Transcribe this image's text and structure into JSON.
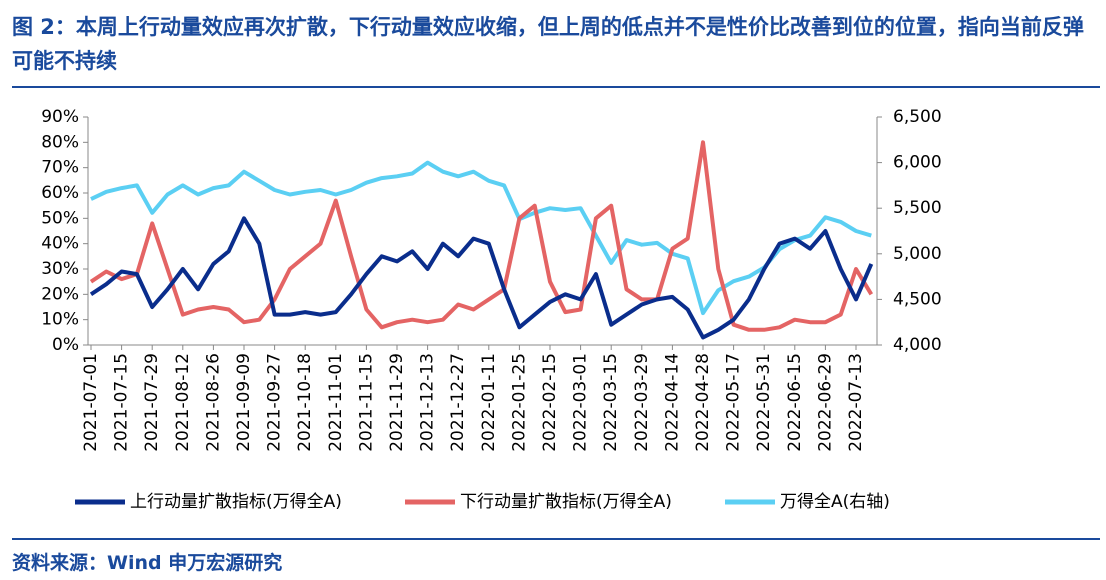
{
  "chart_data": {
    "type": "line",
    "title": "图 2：本周上行动量效应再次扩散，下行动量效应收缩，但上周的低点并不是性价比改善到位的位置，指向当前反弹可能不持续",
    "source": "资料来源：Wind   申万宏源研究",
    "categories": [
      "2021-07-01",
      null,
      "2021-07-15",
      null,
      "2021-07-29",
      null,
      "2021-08-12",
      null,
      "2021-08-26",
      null,
      "2021-09-09",
      null,
      "2021-09-27",
      null,
      "2021-10-18",
      null,
      "2021-11-01",
      null,
      "2021-11-15",
      null,
      "2021-11-29",
      null,
      "2021-12-13",
      null,
      "2021-12-27",
      null,
      "2022-01-11",
      null,
      "2022-01-25",
      null,
      "2022-02-15",
      null,
      "2022-03-01",
      null,
      "2022-03-15",
      null,
      "2022-03-29",
      null,
      "2022-04-14",
      null,
      "2022-04-28",
      null,
      "2022-05-17",
      null,
      "2022-05-31",
      null,
      "2022-06-15",
      null,
      "2022-06-29",
      null,
      "2022-07-13",
      null
    ],
    "series": [
      {
        "name": "上行动量扩散指标(万得全A)",
        "color": "#0a2d8c",
        "values": [
          20,
          24,
          29,
          28,
          15,
          22,
          30,
          22,
          32,
          37,
          50,
          40,
          12,
          12,
          13,
          12,
          13,
          20,
          28,
          35,
          33,
          37,
          30,
          40,
          35,
          42,
          40,
          22,
          7,
          12,
          17,
          20,
          18,
          28,
          8,
          12,
          16,
          18,
          19,
          14,
          3,
          6,
          10,
          18,
          30,
          40,
          42,
          38,
          45,
          30,
          18,
          32
        ]
      },
      {
        "name": "下行动量扩散指标(万得全A)",
        "color": "#e46464",
        "values": [
          25,
          29,
          26,
          28,
          48,
          30,
          12,
          14,
          15,
          14,
          9,
          10,
          18,
          30,
          35,
          40,
          57,
          35,
          14,
          7,
          9,
          10,
          9,
          10,
          16,
          14,
          18,
          22,
          50,
          55,
          25,
          13,
          14,
          50,
          55,
          22,
          18,
          18,
          38,
          42,
          80,
          30,
          8,
          6,
          6,
          7,
          10,
          9,
          9,
          12,
          30,
          20
        ]
      },
      {
        "name": "万得全A(右轴)",
        "color": "#5bcff3",
        "axis": "y2",
        "values": [
          5600,
          5680,
          5720,
          5750,
          5450,
          5650,
          5750,
          5650,
          5720,
          5750,
          5900,
          5800,
          5700,
          5650,
          5680,
          5700,
          5650,
          5700,
          5780,
          5830,
          5850,
          5880,
          6000,
          5900,
          5850,
          5900,
          5800,
          5750,
          5380,
          5450,
          5500,
          5480,
          5500,
          5200,
          4900,
          5150,
          5100,
          5120,
          5000,
          4950,
          4350,
          4600,
          4700,
          4750,
          4850,
          5050,
          5150,
          5200,
          5400,
          5350,
          5250,
          5200
        ]
      }
    ],
    "ylim": [
      0,
      90
    ],
    "yticks": [
      {
        "value": 0,
        "label": "0%"
      },
      {
        "value": 10,
        "label": "10%"
      },
      {
        "value": 20,
        "label": "20%"
      },
      {
        "value": 30,
        "label": "30%"
      },
      {
        "value": 40,
        "label": "40%"
      },
      {
        "value": 50,
        "label": "50%"
      },
      {
        "value": 60,
        "label": "60%"
      },
      {
        "value": 70,
        "label": "70%"
      },
      {
        "value": 80,
        "label": "80%"
      },
      {
        "value": 90,
        "label": "90%"
      }
    ],
    "y2lim": [
      4000,
      6500
    ],
    "y2ticks": [
      {
        "value": 4000,
        "label": "4,000"
      },
      {
        "value": 4500,
        "label": "4,500"
      },
      {
        "value": 5000,
        "label": "5,000"
      },
      {
        "value": 5500,
        "label": "5,500"
      },
      {
        "value": 6000,
        "label": "6,000"
      },
      {
        "value": 6500,
        "label": "6,500"
      }
    ]
  }
}
